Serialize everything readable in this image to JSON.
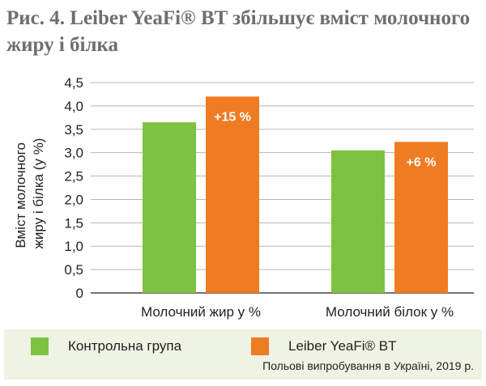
{
  "title": "Рис. 4. Leiber YeaFi® BT збільшує вміст молочного жиру і білка",
  "chart_data": {
    "type": "bar",
    "ylabel_lines": [
      "Вміст молочного",
      "жиру і білка (у %)"
    ],
    "xlabel": "",
    "ylim": [
      0,
      4.5
    ],
    "y_ticks": [
      "0",
      "0,5",
      "1,0",
      "1,5",
      "2,0",
      "2,5",
      "3,0",
      "3,5",
      "4,0",
      "4,5"
    ],
    "y_tick_values": [
      0,
      0.5,
      1.0,
      1.5,
      2.0,
      2.5,
      3.0,
      3.5,
      4.0,
      4.5
    ],
    "grid": true,
    "categories": [
      "Молочний жир у %",
      "Молочний білок у %"
    ],
    "series": [
      {
        "name": "Контрольна група",
        "color": "#7dc242",
        "values": [
          3.65,
          3.05
        ]
      },
      {
        "name": "Leiber YeaFi® BT",
        "color": "#ef7b22",
        "values": [
          4.2,
          3.23
        ]
      }
    ],
    "annotations": [
      "+15 %",
      "+6 %"
    ]
  },
  "legend": {
    "items": [
      {
        "label": "Контрольна група",
        "color": "#7dc242"
      },
      {
        "label": "Leiber YeaFi® BT",
        "color": "#ef7b22"
      }
    ],
    "footnote": "Польові випробування в Україні, 2019 р."
  },
  "colors": {
    "grid": "#b5b5b5",
    "axis": "#231f20",
    "title": "#6d6e70",
    "legend_bg": "#eef3e3"
  }
}
